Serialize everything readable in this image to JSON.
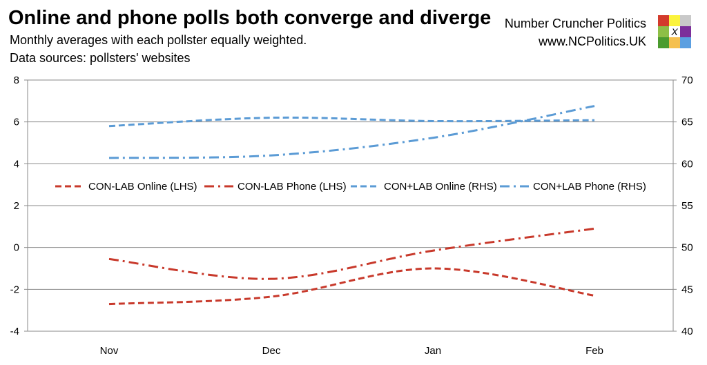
{
  "header": {
    "title": "Online and phone polls both converge and diverge",
    "subtitle": "Monthly averages with each pollster equally weighted.",
    "source": "Data sources: pollsters' websites",
    "brand_name": "Number Cruncher Politics",
    "brand_url": "www.NCPolitics.UK",
    "logo_letter": "X",
    "logo_colors": [
      "#d33b2c",
      "#fbf33c",
      "#c9c9c9",
      "#8ebf46",
      "#ffffff",
      "#7c2e9b",
      "#4b9b2f",
      "#f5c04e",
      "#5b9fe1"
    ]
  },
  "chart_data": {
    "type": "line",
    "title": "Online and phone polls both converge and diverge",
    "categories": [
      "Nov",
      "Dec",
      "Jan",
      "Feb"
    ],
    "y_left": {
      "range": [
        -4,
        8
      ],
      "ticks": [
        "-4",
        "-2",
        "0",
        "2",
        "4",
        "6",
        "8"
      ]
    },
    "y_right": {
      "range": [
        40,
        70
      ],
      "ticks": [
        "40",
        "45",
        "50",
        "55",
        "60",
        "65",
        "70"
      ]
    },
    "grid": true,
    "legend_position": "middle",
    "series": [
      {
        "name": "CON-LAB Online (LHS)",
        "axis": "left",
        "color": "#c8392b",
        "dash": "dashed",
        "values": [
          -2.7,
          -2.35,
          -1.0,
          -2.3
        ]
      },
      {
        "name": "CON-LAB Phone (LHS)",
        "axis": "left",
        "color": "#c8392b",
        "dash": "dashdot",
        "values": [
          -0.55,
          -1.5,
          -0.15,
          0.9
        ]
      },
      {
        "name": "CON+LAB Online (RHS)",
        "axis": "right",
        "color": "#5b9bd5",
        "dash": "dashed",
        "values": [
          64.5,
          65.5,
          65.1,
          65.2
        ]
      },
      {
        "name": "CON+LAB Phone (RHS)",
        "axis": "right",
        "color": "#5b9bd5",
        "dash": "dashdot",
        "values": [
          60.7,
          61.0,
          63.1,
          66.9
        ]
      }
    ]
  }
}
